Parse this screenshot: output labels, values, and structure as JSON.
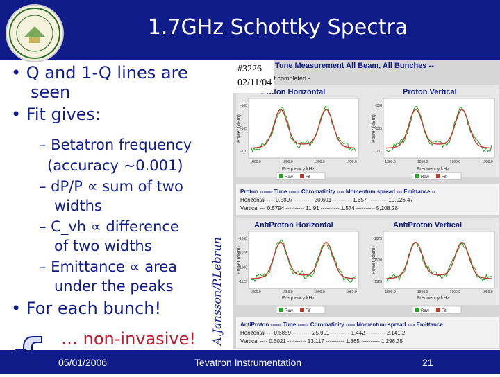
{
  "slide": {
    "title": "1.7GHz Schottky Spectra",
    "bullets": [
      "• Q and 1-Q lines are",
      "seen",
      "• Fit gives:",
      "– Betatron frequency",
      "(accuracy ~0.001)",
      "– dP/P ∝ sum of two",
      "widths",
      "– C_vh ∝ difference",
      "of two widths",
      "– Emittance ∝ area",
      "under the peaks",
      "• For each bunch!",
      "… non-invasive!"
    ],
    "credit": "A.Jansson/P.Lebrun",
    "footer": {
      "date": "05/01/2006",
      "center": "Tevatron Instrumentation",
      "page": "21"
    }
  },
  "figure": {
    "stamp_number": "#3226",
    "stamp_date": "02/11/04",
    "window_title": "Tune Measurement All Beam, All Bunches --",
    "status": "Measurement completed -",
    "plots": [
      {
        "title": "Proton Horizontal",
        "ylabel": "Power (dBm)",
        "xlabel": "Frequency kHz",
        "yticks": [
          "-100",
          "-105",
          "-110"
        ],
        "xticks": [
          "1800.0",
          "1850.0",
          "1900.0",
          "1950.0"
        ]
      },
      {
        "title": "Proton Vertical",
        "ylabel": "Power (dBm)",
        "xlabel": "Frequency kHz",
        "yticks": [
          "-100",
          "-105",
          "-111"
        ],
        "xticks": [
          "1800.0",
          "1850.0",
          "1900.0",
          "1950.0"
        ]
      },
      {
        "title": "AntiProton Horizontal",
        "ylabel": "Power (dBm)",
        "xlabel": "Frequency kHz",
        "yticks": [
          "-1050",
          "-1075",
          "-1100",
          "-1125"
        ],
        "xticks": [
          "1800.0",
          "1850.0",
          "1900.0",
          "1950.0"
        ]
      },
      {
        "title": "AntiProton Vertical",
        "ylabel": "Power (dBm)",
        "xlabel": "Frequency kHz",
        "yticks": [
          "-1075",
          "-1100",
          "-1125"
        ],
        "xticks": [
          "1800.0",
          "1850.0",
          "1900.0",
          "1950.0"
        ]
      }
    ],
    "legend": {
      "raw": "Raw",
      "fit": "Fit"
    },
    "colors": {
      "raw": "#22a322",
      "fit": "#c0392b"
    },
    "proton_table": {
      "header": "Proton ------- Tune ------ Chromaticity ---- Momentum spread --- Emittance --",
      "rows": [
        "Horizontal ---- 0.5897 ---------- 20.601 ---------- 1.657 ---------- 10,026.47",
        "Vertical --- 0.5794 ---------- 11.91 ---------- 1.574 ---------- 5,108.28"
      ]
    },
    "antiproton_table": {
      "header": "AntiProton ------ Tune ------ Chromaticity ----- Momentum spread ---- Emittance",
      "rows": [
        "Horizontal --- 0.5859 ---------- 25.901 ---------- 1.442 ---------- 2,141.2",
        "Vertical ---- 0.5021 ---------- 13.117 ---------- 1.365 ---------- 1,296.35"
      ]
    }
  }
}
